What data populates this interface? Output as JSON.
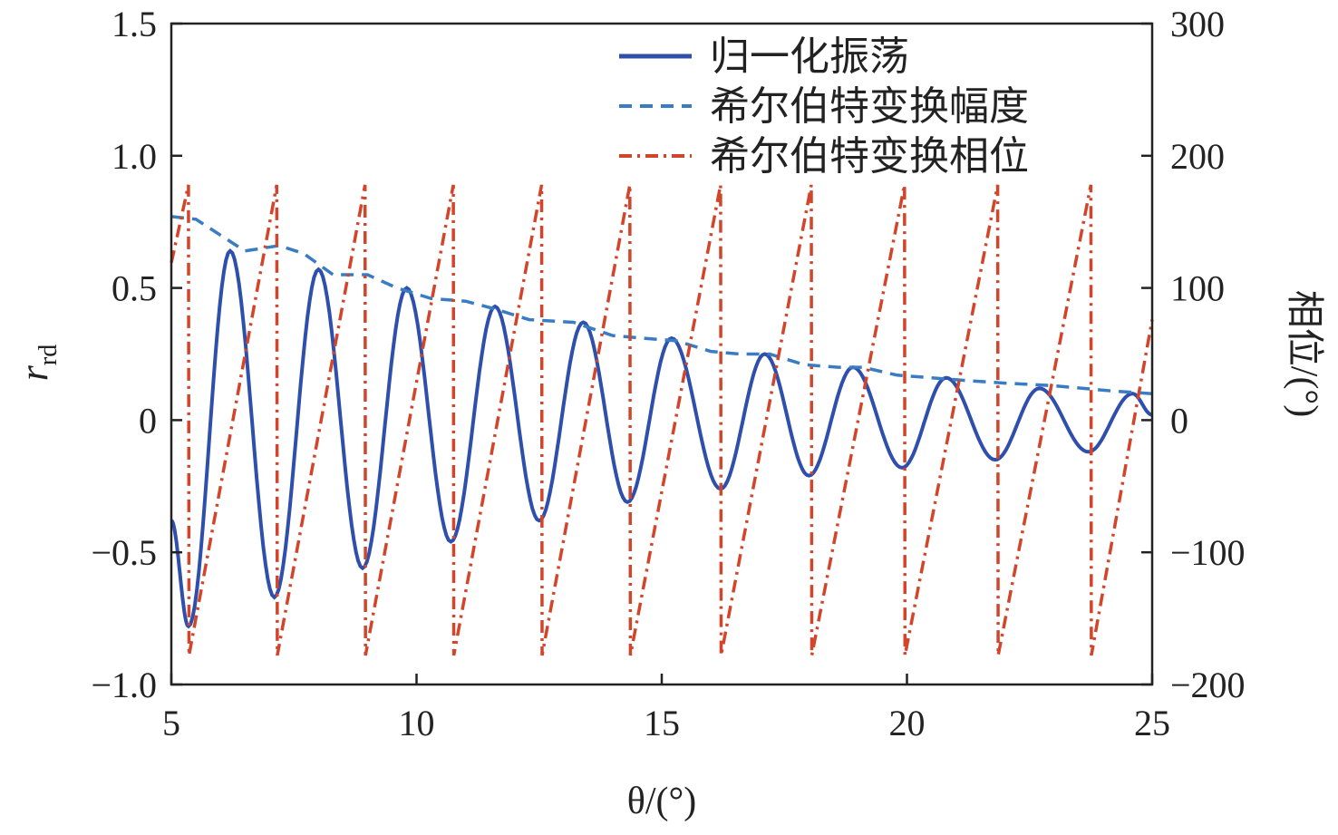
{
  "chart_data": {
    "type": "line",
    "xlabel": "θ/(°)",
    "ylabel_main": "r",
    "ylabel_sub": "rd",
    "y2label": "相位/(°)",
    "xlim": [
      5,
      25
    ],
    "ylim": [
      -1.0,
      1.5
    ],
    "y2lim": [
      -200,
      300
    ],
    "xticks": [
      5,
      10,
      15,
      20,
      25
    ],
    "xtick_labels": [
      "5",
      "10",
      "15",
      "20",
      "25"
    ],
    "yticks": [
      -1.0,
      -0.5,
      0,
      0.5,
      1.0,
      1.5
    ],
    "ytick_labels": [
      "−1.0",
      "−0.5",
      "0",
      "0.5",
      "1.0",
      "1.5"
    ],
    "y2ticks": [
      -200,
      -100,
      0,
      100,
      200,
      300
    ],
    "y2tick_labels": [
      "−200",
      "−100",
      "0",
      "100",
      "200",
      "300"
    ],
    "grid": false,
    "legend_placement": "top-right",
    "series": [
      {
        "name": "归一化振荡",
        "axis": "left",
        "style": "solid",
        "color": "#2f4fad",
        "extrema": [
          [
            5,
            -0.38
          ],
          [
            5.35,
            -0.78
          ],
          [
            6.2,
            0.64
          ],
          [
            7.1,
            -0.67
          ],
          [
            8.0,
            0.57
          ],
          [
            8.9,
            -0.56
          ],
          [
            9.8,
            0.5
          ],
          [
            10.7,
            -0.46
          ],
          [
            11.6,
            0.43
          ],
          [
            12.5,
            -0.38
          ],
          [
            13.4,
            0.37
          ],
          [
            14.3,
            -0.31
          ],
          [
            15.2,
            0.31
          ],
          [
            16.2,
            -0.26
          ],
          [
            17.1,
            0.25
          ],
          [
            18.0,
            -0.21
          ],
          [
            18.9,
            0.2
          ],
          [
            19.9,
            -0.18
          ],
          [
            20.8,
            0.16
          ],
          [
            21.8,
            -0.15
          ],
          [
            22.7,
            0.12
          ],
          [
            23.7,
            -0.12
          ],
          [
            24.6,
            0.1
          ],
          [
            25,
            0.02
          ]
        ]
      },
      {
        "name": "希尔伯特变换幅度",
        "axis": "left",
        "style": "dashed",
        "color": "#3a7cc4",
        "points": [
          [
            5,
            0.77
          ],
          [
            5.5,
            0.76
          ],
          [
            6,
            0.7
          ],
          [
            6.5,
            0.64
          ],
          [
            7.2,
            0.66
          ],
          [
            7.7,
            0.63
          ],
          [
            8.3,
            0.55
          ],
          [
            9,
            0.55
          ],
          [
            9.6,
            0.5
          ],
          [
            10.3,
            0.46
          ],
          [
            11,
            0.45
          ],
          [
            11.6,
            0.42
          ],
          [
            12.3,
            0.38
          ],
          [
            13.2,
            0.37
          ],
          [
            14,
            0.32
          ],
          [
            14.6,
            0.31
          ],
          [
            15.3,
            0.3
          ],
          [
            16,
            0.26
          ],
          [
            16.6,
            0.25
          ],
          [
            17.2,
            0.25
          ],
          [
            17.9,
            0.21
          ],
          [
            18.6,
            0.2
          ],
          [
            19.1,
            0.2
          ],
          [
            19.8,
            0.17
          ],
          [
            20.5,
            0.16
          ],
          [
            21.2,
            0.15
          ],
          [
            22,
            0.14
          ],
          [
            23,
            0.13
          ],
          [
            24.2,
            0.11
          ],
          [
            25,
            0.1
          ]
        ]
      },
      {
        "name": "希尔伯特变换相位",
        "axis": "right",
        "style": "dashdot",
        "color": "#d2452a",
        "points": [
          [
            5,
            119
          ],
          [
            5.35,
            178
          ],
          [
            5.36,
            -178
          ],
          [
            7.15,
            178
          ],
          [
            7.16,
            -178
          ],
          [
            8.95,
            178
          ],
          [
            8.96,
            -178
          ],
          [
            10.75,
            178
          ],
          [
            10.76,
            -178
          ],
          [
            12.55,
            178
          ],
          [
            12.56,
            -178
          ],
          [
            14.35,
            178
          ],
          [
            14.36,
            -178
          ],
          [
            16.2,
            178
          ],
          [
            16.21,
            -178
          ],
          [
            18.05,
            178
          ],
          [
            18.06,
            -178
          ],
          [
            19.95,
            178
          ],
          [
            19.96,
            -178
          ],
          [
            21.85,
            178
          ],
          [
            21.86,
            -178
          ],
          [
            23.75,
            178
          ],
          [
            23.76,
            -178
          ],
          [
            25,
            76
          ]
        ]
      }
    ]
  }
}
